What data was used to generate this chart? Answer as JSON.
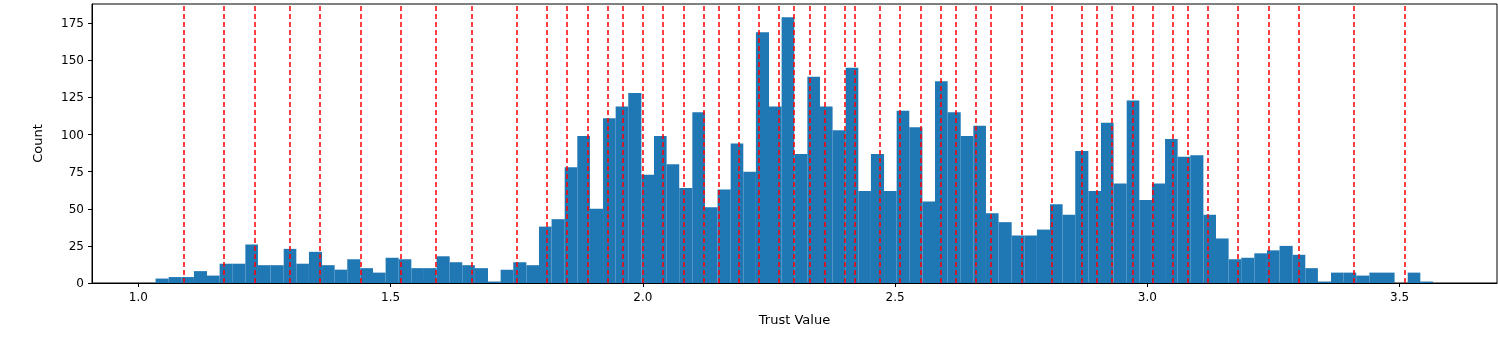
{
  "chart_data": {
    "type": "histogram",
    "xlabel": "Trust Value",
    "ylabel": "Count",
    "color": "#1f77b4",
    "bins": [
      1.034,
      1.06,
      1.085,
      1.11,
      1.136,
      1.161,
      1.186,
      1.212,
      1.237,
      1.262,
      1.288,
      1.313,
      1.338,
      1.364,
      1.389,
      1.414,
      1.44,
      1.465,
      1.49,
      1.516,
      1.541,
      1.566,
      1.591,
      1.617,
      1.642,
      1.667,
      1.693,
      1.718,
      1.743,
      1.769,
      1.794,
      1.819,
      1.845,
      1.87,
      1.895,
      1.921,
      1.946,
      1.971,
      1.997,
      2.022,
      2.047,
      2.072,
      2.098,
      2.123,
      2.148,
      2.174,
      2.199,
      2.224,
      2.25,
      2.275,
      2.3,
      2.326,
      2.351,
      2.376,
      2.402,
      2.427,
      2.452,
      2.478,
      2.503,
      2.528,
      2.554,
      2.579,
      2.604,
      2.63,
      2.655,
      2.68,
      2.705,
      2.731,
      2.756,
      2.781,
      2.807,
      2.832,
      2.857,
      2.883,
      2.908,
      2.933,
      2.959,
      2.984,
      3.009,
      3.035,
      3.06,
      3.085,
      3.111,
      3.136,
      3.161,
      3.186,
      3.212,
      3.237,
      3.262,
      3.288,
      3.313,
      3.338,
      3.364,
      3.389,
      3.414,
      3.44,
      3.465,
      3.49,
      3.516,
      3.541,
      3.566
    ],
    "values": [
      3,
      4,
      4,
      8,
      5,
      13,
      13,
      26,
      12,
      12,
      23,
      13,
      21,
      12,
      9,
      16,
      10,
      7,
      17,
      16,
      10,
      10,
      18,
      14,
      12,
      10,
      1,
      9,
      14,
      12,
      38,
      43,
      78,
      99,
      50,
      111,
      119,
      128,
      73,
      99,
      80,
      64,
      115,
      51,
      63,
      94,
      75,
      169,
      119,
      179,
      87,
      139,
      119,
      103,
      145,
      62,
      87,
      62,
      116,
      105,
      55,
      136,
      115,
      99,
      106,
      47,
      41,
      32,
      32,
      36,
      53,
      46,
      89,
      62,
      108,
      67,
      123,
      56,
      67,
      97,
      85,
      86,
      46,
      30,
      16,
      17,
      20,
      22,
      25,
      19,
      10,
      1,
      7,
      7,
      5,
      7,
      7,
      0,
      7,
      1
    ],
    "xlim": [
      0.908,
      3.693
    ],
    "xticks": [
      {
        "value": 1,
        "label": "1.0"
      },
      {
        "value": 1.5,
        "label": "1.5"
      },
      {
        "value": 2,
        "label": "2.0"
      },
      {
        "value": 2.5,
        "label": "2.5"
      },
      {
        "value": 3,
        "label": "3.0"
      },
      {
        "value": 3.5,
        "label": "3.5"
      }
    ],
    "ylim": [
      0,
      188
    ],
    "yticks": [
      0,
      25,
      50,
      75,
      100,
      125,
      150,
      175
    ],
    "grid": false,
    "ref_lines": [
      {
        "axis": "x",
        "value": 1.095,
        "color": "#ff0000",
        "line_style": "dashed"
      },
      {
        "axis": "x",
        "value": 1.173,
        "color": "#ff0000",
        "line_style": "dashed"
      },
      {
        "axis": "x",
        "value": 1.231,
        "color": "#ff0000",
        "line_style": "dashed"
      },
      {
        "axis": "x",
        "value": 1.298,
        "color": "#ff0000",
        "line_style": "dashed"
      },
      {
        "axis": "x",
        "value": 1.365,
        "color": "#ff0000",
        "line_style": "dashed"
      },
      {
        "axis": "x",
        "value": 1.439,
        "color": "#ff0000",
        "line_style": "dashed"
      },
      {
        "axis": "x",
        "value": 1.519,
        "color": "#ff0000",
        "line_style": "dashed"
      },
      {
        "axis": "x",
        "value": 1.593,
        "color": "#ff0000",
        "line_style": "dashed"
      },
      {
        "axis": "x",
        "value": 1.658,
        "color": "#ff0000",
        "line_style": "dashed"
      },
      {
        "axis": "x",
        "value": 1.753,
        "color": "#ff0000",
        "line_style": "dashed"
      },
      {
        "axis": "x",
        "value": 1.813,
        "color": "#ff0000",
        "line_style": "dashed"
      },
      {
        "axis": "x",
        "value": 1.851,
        "color": "#ff0000",
        "line_style": "dashed"
      },
      {
        "axis": "x",
        "value": 1.89,
        "color": "#ff0000",
        "line_style": "dashed"
      },
      {
        "axis": "x",
        "value": 1.933,
        "color": "#ff0000",
        "line_style": "dashed"
      },
      {
        "axis": "x",
        "value": 1.962,
        "color": "#ff0000",
        "line_style": "dashed"
      },
      {
        "axis": "x",
        "value": 1.995,
        "color": "#ff0000",
        "line_style": "dashed"
      },
      {
        "axis": "x",
        "value": 2.036,
        "color": "#ff0000",
        "line_style": "dashed"
      },
      {
        "axis": "x",
        "value": 2.077,
        "color": "#ff0000",
        "line_style": "dashed"
      },
      {
        "axis": "x",
        "value": 2.115,
        "color": "#ff0000",
        "line_style": "dashed"
      },
      {
        "axis": "x",
        "value": 2.154,
        "color": "#ff0000",
        "line_style": "dashed"
      },
      {
        "axis": "x",
        "value": 2.194,
        "color": "#ff0000",
        "line_style": "dashed"
      },
      {
        "axis": "x",
        "value": 2.235,
        "color": "#ff0000",
        "line_style": "dashed"
      },
      {
        "axis": "x",
        "value": 2.266,
        "color": "#ff0000",
        "line_style": "dashed"
      },
      {
        "axis": "x",
        "value": 2.297,
        "color": "#ff0000",
        "line_style": "dashed"
      },
      {
        "axis": "x",
        "value": 2.335,
        "color": "#ff0000",
        "line_style": "dashed"
      },
      {
        "axis": "x",
        "value": 2.364,
        "color": "#ff0000",
        "line_style": "dashed"
      },
      {
        "axis": "x",
        "value": 2.396,
        "color": "#ff0000",
        "line_style": "dashed"
      },
      {
        "axis": "x",
        "value": 2.425,
        "color": "#ff0000",
        "line_style": "dashed"
      },
      {
        "axis": "x",
        "value": 2.468,
        "color": "#ff0000",
        "line_style": "dashed"
      },
      {
        "axis": "x",
        "value": 2.508,
        "color": "#ff0000",
        "line_style": "dashed"
      },
      {
        "axis": "x",
        "value": 2.546,
        "color": "#ff0000",
        "line_style": "dashed"
      },
      {
        "axis": "x",
        "value": 2.587,
        "color": "#ff0000",
        "line_style": "dashed"
      },
      {
        "axis": "x",
        "value": 2.618,
        "color": "#ff0000",
        "line_style": "dashed"
      },
      {
        "axis": "x",
        "value": 2.656,
        "color": "#ff0000",
        "line_style": "dashed"
      },
      {
        "axis": "x",
        "value": 2.694,
        "color": "#ff0000",
        "line_style": "dashed"
      },
      {
        "axis": "x",
        "value": 2.752,
        "color": "#ff0000",
        "line_style": "dashed"
      },
      {
        "axis": "x",
        "value": 2.812,
        "color": "#ff0000",
        "line_style": "dashed"
      },
      {
        "axis": "x",
        "value": 2.865,
        "color": "#ff0000",
        "line_style": "dashed"
      },
      {
        "axis": "x",
        "value": 2.901,
        "color": "#ff0000",
        "line_style": "dashed"
      },
      {
        "axis": "x",
        "value": 2.934,
        "color": "#ff0000",
        "line_style": "dashed"
      },
      {
        "axis": "x",
        "value": 2.971,
        "color": "#ff0000",
        "line_style": "dashed"
      },
      {
        "axis": "x",
        "value": 3.006,
        "color": "#ff0000",
        "line_style": "dashed"
      },
      {
        "axis": "x",
        "value": 3.047,
        "color": "#ff0000",
        "line_style": "dashed"
      },
      {
        "axis": "x",
        "value": 3.083,
        "color": "#ff0000",
        "line_style": "dashed"
      },
      {
        "axis": "x",
        "value": 3.123,
        "color": "#ff0000",
        "line_style": "dashed"
      },
      {
        "axis": "x",
        "value": 3.184,
        "color": "#ff0000",
        "line_style": "dashed"
      },
      {
        "axis": "x",
        "value": 3.244,
        "color": "#ff0000",
        "line_style": "dashed"
      },
      {
        "axis": "x",
        "value": 3.299,
        "color": "#ff0000",
        "line_style": "dashed"
      },
      {
        "axis": "x",
        "value": 3.409,
        "color": "#ff0000",
        "line_style": "dashed"
      },
      {
        "axis": "x",
        "value": 3.512,
        "color": "#ff0000",
        "line_style": "dashed"
      }
    ]
  }
}
